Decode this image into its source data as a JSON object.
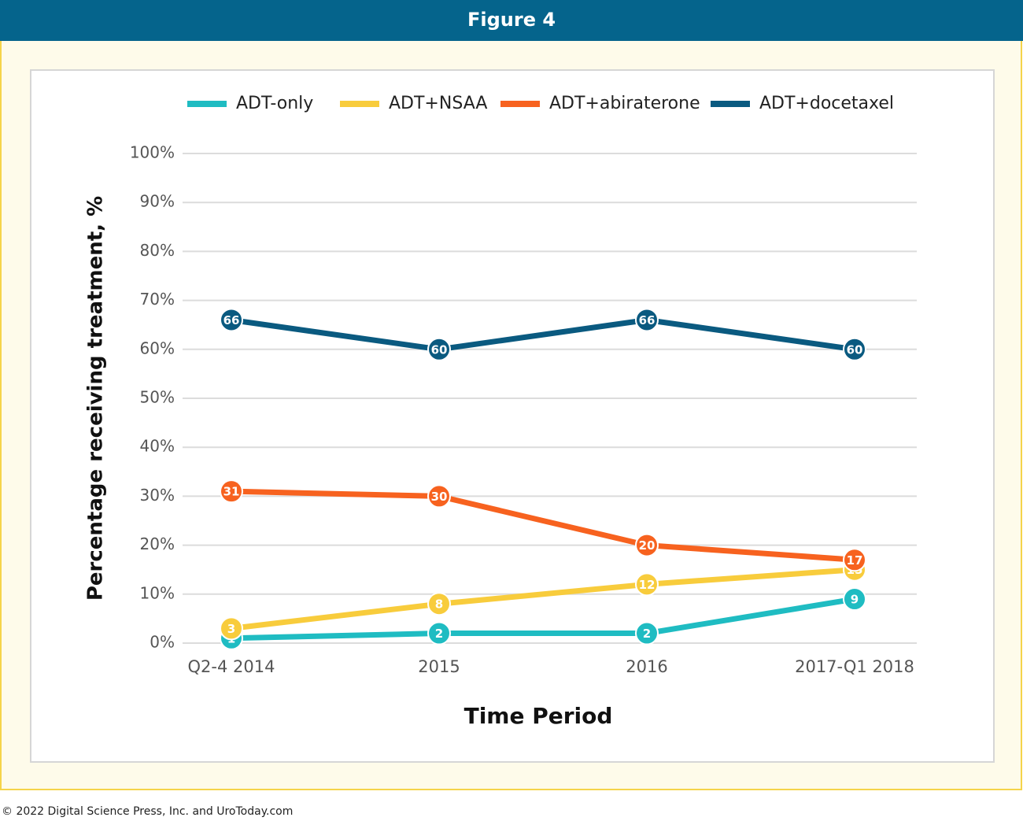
{
  "header": {
    "title": "Figure 4"
  },
  "chart_data": {
    "type": "line",
    "x_label": "Time Period",
    "y_label": "Percentage receiving treatment, %",
    "categories": [
      "Q2-4 2014",
      "2015",
      "2016",
      "2017-Q1 2018"
    ],
    "series": [
      {
        "name": "ADT-only",
        "color": "#1fbcc2",
        "values": [
          1,
          2,
          2,
          9
        ]
      },
      {
        "name": "ADT+NSAA",
        "color": "#f8cc3c",
        "values": [
          3,
          8,
          12,
          15
        ]
      },
      {
        "name": "ADT+abiraterone",
        "color": "#f7621f",
        "values": [
          31,
          30,
          20,
          17
        ]
      },
      {
        "name": "ADT+docetaxel",
        "color": "#0a5a80",
        "values": [
          66,
          60,
          66,
          60
        ]
      }
    ],
    "ylim": [
      0,
      100
    ],
    "yticks": [
      {
        "value": 0,
        "label": "0%"
      },
      {
        "value": 10,
        "label": "10%"
      },
      {
        "value": 20,
        "label": "20%"
      },
      {
        "value": 30,
        "label": "30%"
      },
      {
        "value": 40,
        "label": "40%"
      },
      {
        "value": 50,
        "label": "50%"
      },
      {
        "value": 60,
        "label": "60%"
      },
      {
        "value": 70,
        "label": "70%"
      },
      {
        "value": 80,
        "label": "80%"
      },
      {
        "value": 90,
        "label": "90%"
      },
      {
        "value": 100,
        "label": "100%"
      }
    ],
    "grid": true,
    "legend": "top"
  },
  "footer": {
    "text": "© 2022 Digital Science Press, Inc. and UroToday.com"
  }
}
